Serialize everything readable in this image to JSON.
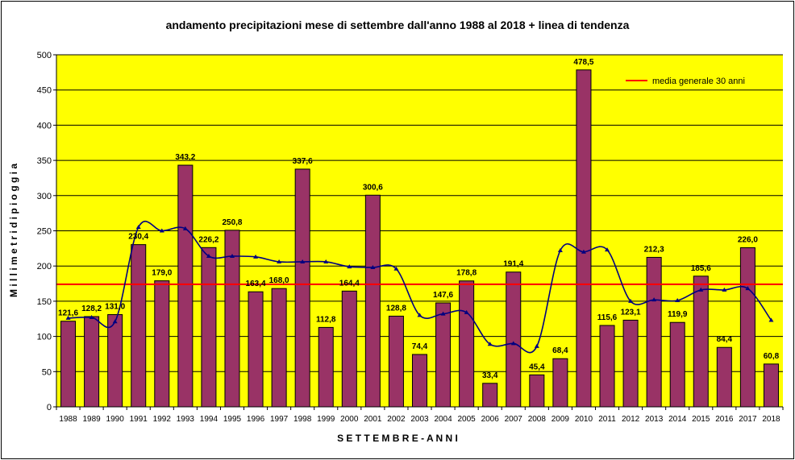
{
  "chart_data": {
    "type": "bar",
    "title": "andamento precipitazioni mese di settembre dall'anno 1988 al 2018 + linea di tendenza",
    "xlabel": "S E T T E M B R E  -  A N N I",
    "ylabel": "M i l l i m e t r i   d i   p i o g g i a",
    "ylim": [
      0,
      500
    ],
    "yticks": [
      "0",
      "50",
      "100",
      "150",
      "200",
      "250",
      "300",
      "350",
      "400",
      "450",
      "500"
    ],
    "grid": true,
    "legend_position": "top-right",
    "colors": {
      "plot_background": "#ffff00",
      "bar": "#993366",
      "trend": "#000080",
      "average": "#ff0000"
    },
    "categories": [
      "1988",
      "1989",
      "1990",
      "1991",
      "1992",
      "1993",
      "1994",
      "1995",
      "1996",
      "1997",
      "1998",
      "1999",
      "2000",
      "2001",
      "2002",
      "2003",
      "2004",
      "2005",
      "2006",
      "2007",
      "2008",
      "2009",
      "2010",
      "2011",
      "2012",
      "2013",
      "2014",
      "2015",
      "2016",
      "2017",
      "2018"
    ],
    "values": [
      121.6,
      128.2,
      131.0,
      230.4,
      179.0,
      343.2,
      226.2,
      250.8,
      163.4,
      168.0,
      337.6,
      112.8,
      164.4,
      300.6,
      128.8,
      74.4,
      147.6,
      178.8,
      33.4,
      191.4,
      45.4,
      68.4,
      478.5,
      115.6,
      123.1,
      212.3,
      119.9,
      185.6,
      84.4,
      226.0,
      60.8
    ],
    "value_labels": [
      "121,6",
      "128,2",
      "131,0",
      "230,4",
      "179,0",
      "343,2",
      "226,2",
      "250,8",
      "163,4",
      "168,0",
      "337,6",
      "112,8",
      "164,4",
      "300,6",
      "128,8",
      "74,4",
      "147,6",
      "178,8",
      "33,4",
      "191,4",
      "45,4",
      "68,4",
      "478,5",
      "115,6",
      "123,1",
      "212,3",
      "119,9",
      "185,6",
      "84,4",
      "226,0",
      "60,8"
    ],
    "trend_line": [
      126,
      127,
      121,
      255,
      250,
      253,
      214,
      214,
      213,
      206,
      206,
      206,
      199,
      198,
      196,
      130,
      132,
      134,
      89,
      90,
      86,
      222,
      220,
      223,
      150,
      152,
      151,
      166,
      166,
      168,
      123
    ],
    "average": {
      "name": "media generale 30 anni",
      "value": 174
    }
  }
}
